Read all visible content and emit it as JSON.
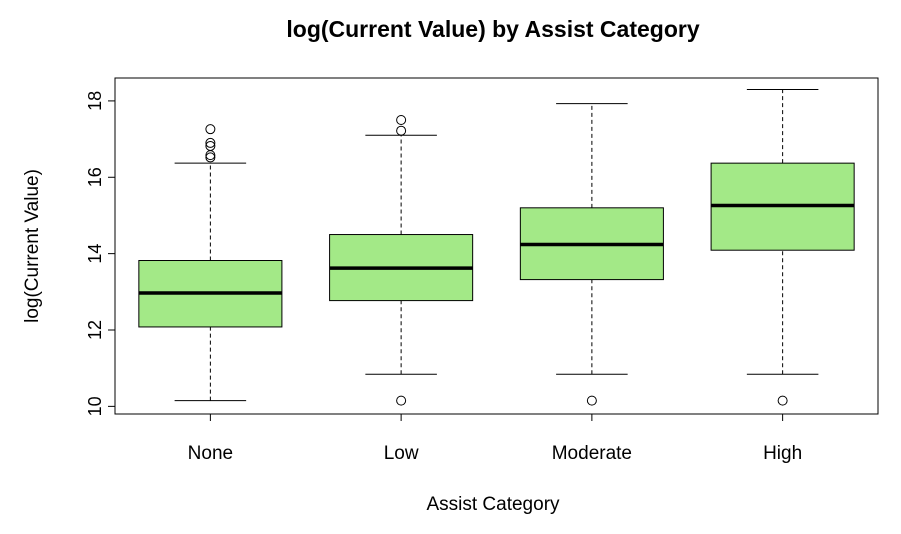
{
  "chart_data": {
    "type": "boxplot",
    "title": "log(Current Value) by Assist Category",
    "xlabel": "Assist Category",
    "ylabel": "log(Current Value)",
    "ylim": [
      9.8,
      18.6
    ],
    "yticks": [
      10,
      12,
      14,
      16,
      18
    ],
    "categories": [
      "None",
      "Low",
      "Moderate",
      "High"
    ],
    "box_color": "#a3e987",
    "boxes": [
      {
        "name": "None",
        "whisker_low": 10.15,
        "q1": 12.08,
        "median": 12.97,
        "q3": 13.82,
        "whisker_high": 16.37,
        "outliers": [
          16.52,
          16.58,
          16.82,
          16.9,
          17.26
        ]
      },
      {
        "name": "Low",
        "whisker_low": 10.84,
        "q1": 12.77,
        "median": 13.62,
        "q3": 14.5,
        "whisker_high": 17.1,
        "outliers": [
          10.15,
          17.22,
          17.5
        ]
      },
      {
        "name": "Moderate",
        "whisker_low": 10.84,
        "q1": 13.32,
        "median": 14.24,
        "q3": 15.2,
        "whisker_high": 17.93,
        "outliers": [
          10.15
        ]
      },
      {
        "name": "High",
        "whisker_low": 10.84,
        "q1": 14.09,
        "median": 15.26,
        "q3": 16.37,
        "whisker_high": 18.3,
        "outliers": [
          10.15
        ]
      }
    ]
  }
}
